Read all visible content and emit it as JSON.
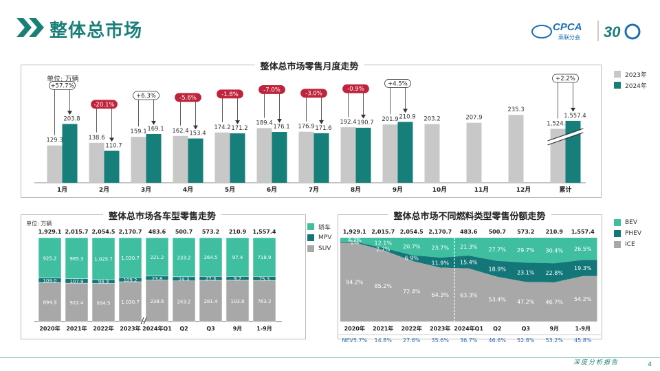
{
  "header": {
    "title": "整体总市场",
    "logo_text": "CPCA 乘联分会",
    "logo_30": "30"
  },
  "footer": {
    "text": "深度分析报告",
    "page": "4"
  },
  "colors": {
    "accent": "#1a7f78",
    "bar2023": "#c8c8c8",
    "bar2024": "#167f7a",
    "bev": "#3fbfa0",
    "phev": "#13777a",
    "ice": "#a8a8a8",
    "neg": "#c0243c"
  },
  "panel1": {
    "title": "整体总市场零售月度走势",
    "unit": "单位: 万辆",
    "legend": [
      "2023年",
      "2024年"
    ]
  },
  "panel2": {
    "title": "整体总市场各车型零售走势",
    "unit": "单位: 万辆",
    "legend": [
      "轿车",
      "MPV",
      "SUV"
    ]
  },
  "panel3": {
    "title": "整体总市场不同燃料类型零售份额走势",
    "legend": [
      "BEV",
      "PHEV",
      "ICE"
    ]
  },
  "chart_data": [
    {
      "type": "bar",
      "title": "整体总市场零售月度走势",
      "ylabel": "单位: 万辆",
      "categories": [
        "1月",
        "2月",
        "3月",
        "4月",
        "5月",
        "6月",
        "7月",
        "8月",
        "9月",
        "10月",
        "11月",
        "12月",
        "累计"
      ],
      "series": [
        {
          "name": "2023年",
          "values": [
            129.3,
            138.6,
            159.1,
            162.4,
            174.2,
            189.4,
            176.9,
            192.4,
            201.9,
            203.2,
            207.9,
            235.3,
            1524.3
          ]
        },
        {
          "name": "2024年",
          "values": [
            203.8,
            110.7,
            169.1,
            153.4,
            171.2,
            176.1,
            171.6,
            190.7,
            210.9,
            null,
            null,
            null,
            1557.4
          ]
        }
      ],
      "labels_2023": [
        "129.3",
        "138.6",
        "159.1",
        "162.4",
        "174.2",
        "189.4",
        "176.9",
        "192.4",
        "201.9",
        "203.2",
        "207.9",
        "235.3",
        "1,524.3"
      ],
      "labels_2024": [
        "203.8",
        "110.7",
        "169.1",
        "153.4",
        "171.2",
        "176.1",
        "171.6",
        "190.7",
        "210.9",
        "",
        "",
        "",
        "1,557.4"
      ],
      "growth": [
        "+57.7%",
        "-20.1%",
        "+6.3%",
        "-5.6%",
        "-1.8%",
        "-7.0%",
        "-3.0%",
        "-0.9%",
        "+4.5%",
        "",
        "",
        "",
        "+2.2%"
      ]
    },
    {
      "type": "bar",
      "title": "整体总市场各车型零售走势",
      "ylabel": "单位: 万辆",
      "categories": [
        "2020年",
        "2021年",
        "2022年",
        "2023年",
        "2024年Q1",
        "Q2",
        "Q3",
        "9月",
        "1-9月"
      ],
      "totals": [
        "1,929.1",
        "2,015.7",
        "2,054.5",
        "2,170.7",
        "483.6",
        "500.7",
        "573.2",
        "210.9",
        "1,557.4"
      ],
      "series": [
        {
          "name": "轿车",
          "values": [
            925.2,
            985.3,
            1025.7,
            1030.7,
            221.2,
            233.2,
            264.5,
            97.4,
            718.9
          ],
          "labels": [
            "925.2",
            "985.3",
            "1,025.7",
            "1,030.7",
            "221.2",
            "233.2",
            "264.5",
            "97.4",
            "718.9"
          ]
        },
        {
          "name": "MPV",
          "values": [
            109.0,
            107.9,
            94.3,
            109.2,
            23.8,
            24.3,
            27.3,
            9.7,
            75.3
          ],
          "labels": [
            "109.0",
            "107.9",
            "94.3",
            "109.2",
            "23.8",
            "24.3",
            "27.3",
            "9.7",
            "75.3"
          ]
        },
        {
          "name": "SUV",
          "values": [
            894.9,
            922.4,
            934.5,
            1030.7,
            238.6,
            243.2,
            281.4,
            103.8,
            763.2
          ],
          "labels": [
            "894.9",
            "922.4",
            "934.5",
            "1,030.7",
            "238.6",
            "243.2",
            "281.4",
            "103.8",
            "763.2"
          ]
        }
      ]
    },
    {
      "type": "area",
      "title": "整体总市场不同燃料类型零售份额走势",
      "categories": [
        "2020年",
        "2021年",
        "2022年",
        "2023年",
        "2024年Q1",
        "Q2",
        "Q3",
        "9月",
        "1-9月"
      ],
      "totals": [
        "1,929.1",
        "2,015.7",
        "2,054.5",
        "2,170.7",
        "483.6",
        "500.7",
        "573.2",
        "210.9",
        "1,557.4"
      ],
      "series": [
        {
          "name": "BEV",
          "values": [
            4.7,
            12.1,
            20.7,
            23.7,
            21.3,
            27.7,
            29.7,
            30.4,
            26.5
          ]
        },
        {
          "name": "PHEV",
          "values": [
            1.0,
            2.7,
            6.9,
            11.9,
            15.4,
            18.9,
            23.1,
            22.8,
            19.3
          ]
        },
        {
          "name": "ICE",
          "values": [
            94.2,
            85.2,
            72.4,
            64.3,
            63.3,
            53.4,
            47.2,
            46.7,
            54.2
          ]
        }
      ],
      "nev": [
        "NEV5.7%",
        "14.8%",
        "27.6%",
        "35.6%",
        "36.7%",
        "46.6%",
        "52.8%",
        "53.2%",
        "45.8%"
      ]
    }
  ]
}
